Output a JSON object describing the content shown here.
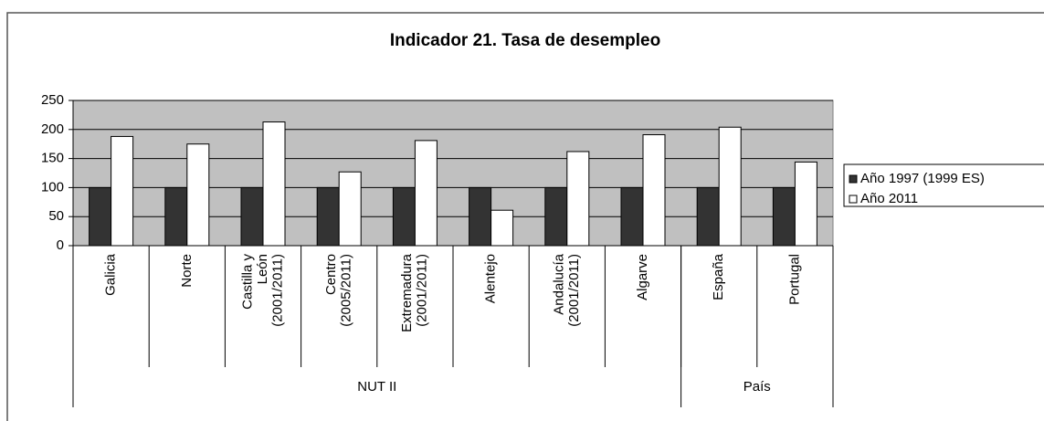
{
  "chart_data": {
    "type": "bar",
    "title": "Indicador 21. Tasa de desempleo",
    "categories": [
      "Galicia",
      "Norte",
      "Castilla y León (2001/2011)",
      "Centro (2005/2011)",
      "Extremadura (2001/2011)",
      "Alentejo",
      "Andalucía (2001/2011)",
      "Algarve",
      "España",
      "Portugal"
    ],
    "groups": [
      {
        "label": "NUT II",
        "count": 8
      },
      {
        "label": "País",
        "count": 2
      }
    ],
    "series": [
      {
        "name": "Año 1997 (1999 ES)",
        "color": "#333333",
        "values": [
          100,
          100,
          100,
          100,
          100,
          100,
          100,
          100,
          100,
          100
        ]
      },
      {
        "name": "Año 2011",
        "color": "#ffffff",
        "values": [
          188,
          175,
          213,
          127,
          181,
          61,
          162,
          191,
          204,
          144
        ]
      }
    ],
    "ylim": [
      0,
      250
    ],
    "yticks": [
      0,
      50,
      100,
      150,
      200,
      250
    ],
    "grid": true,
    "legend": "right"
  }
}
